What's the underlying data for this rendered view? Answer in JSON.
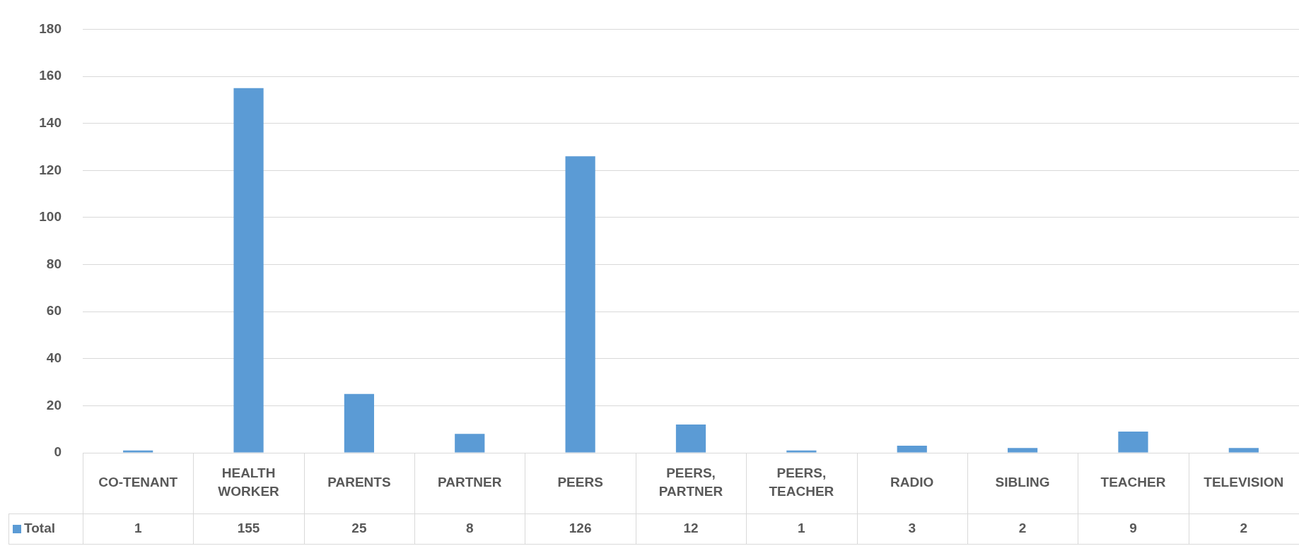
{
  "chart_data": {
    "type": "bar",
    "categories": [
      "CO-TENANT",
      "HEALTH WORKER",
      "PARENTS",
      "PARTNER",
      "PEERS",
      "PEERS, PARTNER",
      "PEERS, TEACHER",
      "RADIO",
      "SIBLING",
      "TEACHER",
      "TELEVISION"
    ],
    "series": [
      {
        "name": "Total",
        "color": "#5b9bd5",
        "values": [
          1,
          155,
          25,
          8,
          126,
          12,
          1,
          3,
          2,
          9,
          2
        ]
      }
    ],
    "ylim": [
      0,
      180
    ],
    "yticks": [
      0,
      20,
      40,
      60,
      80,
      100,
      120,
      140,
      160,
      180
    ],
    "grid": "y",
    "legend": "bottom",
    "data_labels": true
  }
}
